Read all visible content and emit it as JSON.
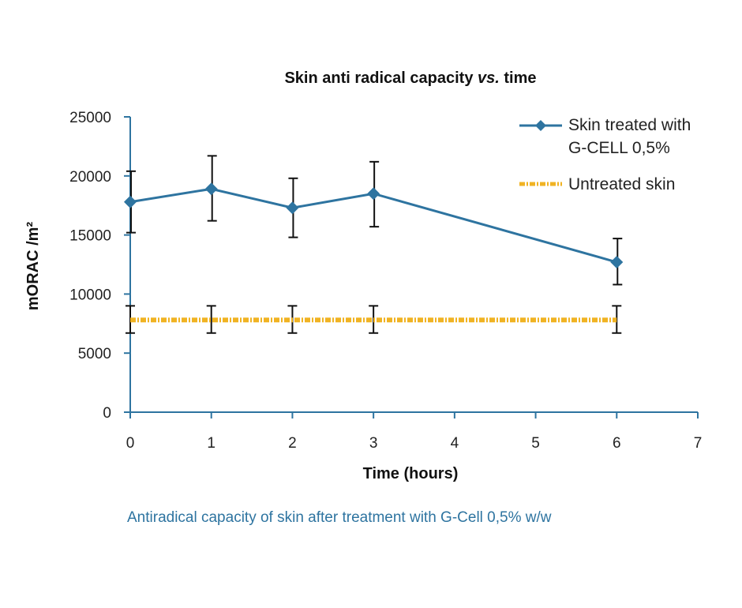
{
  "chart_data": {
    "type": "line",
    "title_main": "Skin anti radical capacity ",
    "title_italic": "vs.",
    "title_end": " time",
    "xlabel": "Time (hours)",
    "ylabel": "mORAC /m²",
    "xlim": [
      0,
      7
    ],
    "ylim": [
      0,
      25000
    ],
    "xticks": [
      "0",
      "1",
      "2",
      "3",
      "4",
      "5",
      "6",
      "7"
    ],
    "yticks": [
      "0",
      "5000",
      "10000",
      "15000",
      "20000",
      "25000"
    ],
    "grid": false,
    "legend_position": "top-right",
    "series": [
      {
        "name_line1": "Skin treated with",
        "name_line2": "G-CELL 0,5%",
        "color": "#2e74a0",
        "marker": "diamond",
        "style": "solid",
        "x": [
          0,
          1,
          2,
          3,
          6
        ],
        "y": [
          17800,
          18900,
          17300,
          18500,
          12700
        ],
        "err_low": [
          15200,
          16200,
          14800,
          15700,
          10800
        ],
        "err_high": [
          20400,
          21700,
          19800,
          21200,
          14700
        ]
      },
      {
        "name": "Untreated skin",
        "color": "#f0b323",
        "marker": "none",
        "style": "dash-dot",
        "x": [
          0,
          1,
          2,
          3,
          6
        ],
        "y": [
          7800,
          7800,
          7800,
          7800,
          7800
        ],
        "err_low": [
          6700,
          6700,
          6700,
          6700,
          6700
        ],
        "err_high": [
          9000,
          9000,
          9000,
          9000,
          9000
        ]
      }
    ]
  },
  "caption": "Antiradical capacity of skin after treatment with G-Cell 0,5% w/w",
  "colors": {
    "axis": "#2e74a0",
    "error_bar": "#111111"
  }
}
